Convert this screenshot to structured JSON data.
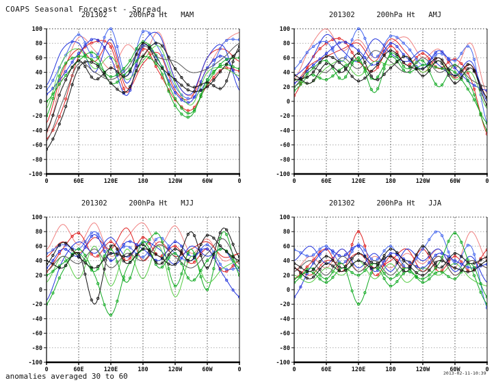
{
  "header": {
    "title": "COAPS Seasonal Forecast - Spread"
  },
  "footer": {
    "note": "anomalies averaged 30 to 60",
    "timestamp": "2013-02-11-10:39"
  },
  "chart_data": {
    "type": "line",
    "description": "Four-panel ensemble spaghetti plot of 200hPa height anomaly spread vs longitude",
    "xlim": [
      0,
      360
    ],
    "ylim": [
      -100,
      100
    ],
    "x_step_deg": 30,
    "xticks_deg": [
      0,
      60,
      120,
      180,
      240,
      300,
      360
    ],
    "xtick_labels": [
      "0",
      "60E",
      "120E",
      "180",
      "120W",
      "60W",
      "0"
    ],
    "ytick_step": 20,
    "ytick_labels": [
      "100",
      "80",
      "60",
      "40",
      "20",
      "0",
      "-20",
      "-40",
      "-60",
      "-80",
      "-100"
    ],
    "grid": "dotted",
    "colors": {
      "red": "#e02222",
      "red_light": "#f08080",
      "blue": "#2233dd",
      "blue_mid": "#4466ee",
      "green": "#11aa22",
      "green_light": "#55cc44",
      "black": "#111111",
      "gray": "#555555"
    },
    "panels": [
      {
        "id": "MAM",
        "title": "201302     200hPa Ht   MAM",
        "series": [
          {
            "color": "#f08080",
            "marker": false,
            "values": [
              -45,
              35,
              88,
              70,
              45,
              78,
              62,
              95,
              30,
              8,
              45,
              80,
              95
            ]
          },
          {
            "color": "#e02222",
            "marker": true,
            "values": [
              -52,
              -10,
              62,
              82,
              75,
              12,
              72,
              40,
              2,
              -12,
              22,
              45,
              42
            ]
          },
          {
            "color": "#e02222",
            "marker": false,
            "values": [
              -30,
              42,
              72,
              55,
              80,
              18,
              52,
              66,
              15,
              5,
              60,
              72,
              55
            ]
          },
          {
            "color": "#4466ee",
            "marker": true,
            "values": [
              16,
              55,
              92,
              60,
              100,
              35,
              96,
              72,
              20,
              4,
              30,
              80,
              85
            ]
          },
          {
            "color": "#2233dd",
            "marker": false,
            "values": [
              22,
              72,
              80,
              40,
              86,
              25,
              80,
              92,
              30,
              10,
              60,
              76,
              15
            ]
          },
          {
            "color": "#2233dd",
            "marker": true,
            "values": [
              10,
              35,
              66,
              86,
              60,
              8,
              76,
              55,
              12,
              0,
              46,
              62,
              30
            ]
          },
          {
            "color": "#11aa22",
            "marker": true,
            "values": [
              -20,
              46,
              62,
              55,
              34,
              50,
              82,
              56,
              4,
              -16,
              25,
              55,
              60
            ]
          },
          {
            "color": "#55cc44",
            "marker": false,
            "values": [
              -10,
              56,
              72,
              45,
              62,
              30,
              56,
              76,
              25,
              -5,
              40,
              46,
              35
            ]
          },
          {
            "color": "#11aa22",
            "marker": true,
            "values": [
              0,
              30,
              56,
              66,
              25,
              40,
              62,
              46,
              -6,
              -20,
              30,
              50,
              45
            ]
          },
          {
            "color": "#111111",
            "marker": true,
            "values": [
              -66,
              -20,
              46,
              52,
              25,
              14,
              62,
              80,
              45,
              20,
              26,
              20,
              76
            ]
          },
          {
            "color": "#555555",
            "marker": false,
            "values": [
              -55,
              0,
              52,
              40,
              30,
              45,
              76,
              60,
              55,
              40,
              45,
              60,
              80
            ]
          },
          {
            "color": "#111111",
            "marker": true,
            "values": [
              -40,
              20,
              56,
              30,
              46,
              35,
              80,
              50,
              30,
              14,
              20,
              46,
              70
            ]
          }
        ]
      },
      {
        "id": "AMJ",
        "title": "201302     200hPa Ht   AMJ",
        "series": [
          {
            "color": "#f08080",
            "marker": false,
            "values": [
              30,
              75,
              100,
              70,
              85,
              60,
              80,
              88,
              60,
              72,
              45,
              80,
              10
            ]
          },
          {
            "color": "#e02222",
            "marker": true,
            "values": [
              8,
              55,
              80,
              85,
              55,
              42,
              76,
              50,
              66,
              45,
              58,
              30,
              -45
            ]
          },
          {
            "color": "#e02222",
            "marker": false,
            "values": [
              25,
              50,
              62,
              72,
              80,
              55,
              86,
              66,
              40,
              60,
              32,
              50,
              5
            ]
          },
          {
            "color": "#4466ee",
            "marker": true,
            "values": [
              45,
              72,
              82,
              55,
              100,
              60,
              90,
              76,
              50,
              66,
              56,
              72,
              -30
            ]
          },
          {
            "color": "#2233dd",
            "marker": false,
            "values": [
              35,
              55,
              92,
              70,
              55,
              86,
              66,
              55,
              70,
              50,
              36,
              55,
              0
            ]
          },
          {
            "color": "#2233dd",
            "marker": true,
            "values": [
              25,
              46,
              66,
              82,
              70,
              50,
              80,
              60,
              45,
              70,
              46,
              25,
              15
            ]
          },
          {
            "color": "#11aa22",
            "marker": true,
            "values": [
              20,
              42,
              56,
              30,
              60,
              12,
              66,
              45,
              56,
              20,
              50,
              20,
              -40
            ]
          },
          {
            "color": "#55cc44",
            "marker": false,
            "values": [
              30,
              25,
              46,
              56,
              35,
              55,
              50,
              62,
              40,
              56,
              30,
              40,
              -10
            ]
          },
          {
            "color": "#11aa22",
            "marker": true,
            "values": [
              15,
              36,
              30,
              46,
              56,
              30,
              62,
              40,
              50,
              46,
              40,
              10,
              -30
            ]
          },
          {
            "color": "#111111",
            "marker": true,
            "values": [
              36,
              25,
              52,
              40,
              66,
              30,
              46,
              62,
              35,
              56,
              25,
              46,
              5
            ]
          },
          {
            "color": "#555555",
            "marker": false,
            "values": [
              20,
              46,
              40,
              60,
              45,
              70,
              55,
              40,
              60,
              40,
              50,
              30,
              20
            ]
          },
          {
            "color": "#111111",
            "marker": true,
            "values": [
              30,
              36,
              62,
              50,
              28,
              46,
              70,
              50,
              45,
              60,
              35,
              50,
              -5
            ]
          }
        ]
      },
      {
        "id": "MJJ",
        "title": "201302     200hPa Ht   MJJ",
        "series": [
          {
            "color": "#f08080",
            "marker": false,
            "values": [
              55,
              90,
              62,
              92,
              46,
              72,
              92,
              60,
              88,
              50,
              70,
              40,
              50
            ]
          },
          {
            "color": "#e02222",
            "marker": true,
            "values": [
              25,
              56,
              78,
              45,
              66,
              40,
              72,
              46,
              60,
              36,
              56,
              25,
              40
            ]
          },
          {
            "color": "#e02222",
            "marker": false,
            "values": [
              45,
              66,
              50,
              72,
              56,
              85,
              40,
              66,
              46,
              56,
              66,
              45,
              50
            ]
          },
          {
            "color": "#4466ee",
            "marker": true,
            "values": [
              50,
              62,
              56,
              80,
              50,
              60,
              45,
              72,
              50,
              40,
              62,
              30,
              30
            ]
          },
          {
            "color": "#2233dd",
            "marker": false,
            "values": [
              -15,
              40,
              66,
              50,
              72,
              45,
              66,
              56,
              35,
              60,
              46,
              56,
              25
            ]
          },
          {
            "color": "#2233dd",
            "marker": true,
            "values": [
              30,
              56,
              46,
              76,
              40,
              66,
              56,
              40,
              66,
              46,
              56,
              20,
              -10
            ]
          },
          {
            "color": "#11aa22",
            "marker": true,
            "values": [
              -20,
              25,
              56,
              20,
              -35,
              30,
              56,
              76,
              5,
              56,
              0,
              80,
              20
            ]
          },
          {
            "color": "#55cc44",
            "marker": false,
            "values": [
              10,
              46,
              15,
              60,
              5,
              56,
              15,
              60,
              -10,
              46,
              10,
              30,
              40
            ]
          },
          {
            "color": "#11aa22",
            "marker": true,
            "values": [
              20,
              36,
              50,
              25,
              56,
              10,
              66,
              30,
              50,
              12,
              40,
              56,
              30
            ]
          },
          {
            "color": "#111111",
            "marker": true,
            "values": [
              40,
              30,
              50,
              -20,
              60,
              36,
              56,
              46,
              35,
              80,
              30,
              85,
              45
            ]
          },
          {
            "color": "#555555",
            "marker": false,
            "values": [
              25,
              46,
              36,
              56,
              30,
              50,
              40,
              62,
              45,
              30,
              50,
              70,
              35
            ]
          },
          {
            "color": "#111111",
            "marker": true,
            "values": [
              35,
              65,
              45,
              30,
              50,
              46,
              62,
              35,
              56,
              40,
              75,
              56,
              40
            ]
          }
        ]
      },
      {
        "id": "JJA",
        "title": "201302     200hPa Ht   JJA",
        "series": [
          {
            "color": "#f08080",
            "marker": false,
            "values": [
              25,
              46,
              30,
              56,
              25,
              46,
              30,
              50,
              36,
              56,
              30,
              80,
              40
            ]
          },
          {
            "color": "#e02222",
            "marker": true,
            "values": [
              15,
              36,
              56,
              25,
              80,
              20,
              46,
              30,
              56,
              25,
              46,
              25,
              55
            ]
          },
          {
            "color": "#e02222",
            "marker": false,
            "values": [
              30,
              20,
              40,
              36,
              50,
              30,
              40,
              56,
              25,
              46,
              20,
              40,
              30
            ]
          },
          {
            "color": "#4466ee",
            "marker": true,
            "values": [
              55,
              46,
              60,
              36,
              62,
              40,
              60,
              30,
              56,
              80,
              36,
              60,
              -25
            ]
          },
          {
            "color": "#2233dd",
            "marker": false,
            "values": [
              40,
              60,
              36,
              56,
              30,
              50,
              25,
              56,
              40,
              56,
              25,
              46,
              10
            ]
          },
          {
            "color": "#2233dd",
            "marker": true,
            "values": [
              -10,
              30,
              56,
              46,
              60,
              25,
              50,
              40,
              30,
              50,
              40,
              30,
              35
            ]
          },
          {
            "color": "#11aa22",
            "marker": true,
            "values": [
              10,
              30,
              15,
              36,
              -20,
              30,
              5,
              25,
              15,
              36,
              78,
              30,
              -20
            ]
          },
          {
            "color": "#55cc44",
            "marker": false,
            "values": [
              20,
              10,
              30,
              20,
              40,
              15,
              36,
              10,
              30,
              20,
              36,
              15,
              5
            ]
          },
          {
            "color": "#11aa22",
            "marker": true,
            "values": [
              15,
              25,
              10,
              30,
              20,
              36,
              15,
              30,
              10,
              25,
              15,
              36,
              -10
            ]
          },
          {
            "color": "#111111",
            "marker": true,
            "values": [
              36,
              25,
              46,
              30,
              50,
              36,
              46,
              25,
              60,
              30,
              50,
              36,
              45
            ]
          },
          {
            "color": "#555555",
            "marker": false,
            "values": [
              25,
              40,
              20,
              46,
              25,
              40,
              20,
              40,
              25,
              46,
              20,
              40,
              30
            ]
          },
          {
            "color": "#111111",
            "marker": true,
            "values": [
              30,
              15,
              36,
              25,
              40,
              30,
              56,
              36,
              20,
              40,
              30,
              25,
              40
            ]
          }
        ]
      }
    ]
  }
}
